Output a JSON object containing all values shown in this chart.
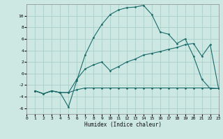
{
  "xlabel": "Humidex (Indice chaleur)",
  "background_color": "#cde8e2",
  "grid_color": "#aad0c8",
  "line_color": "#1a6b6b",
  "line1_x": [
    1,
    2,
    3,
    4,
    5,
    6,
    7,
    8,
    9,
    10,
    11,
    12,
    13,
    14,
    15,
    16,
    17,
    18,
    19,
    20,
    21,
    22,
    23
  ],
  "line1_y": [
    -3.0,
    -3.5,
    -3.0,
    -3.3,
    -5.8,
    -1.2,
    3.2,
    6.2,
    8.5,
    10.2,
    11.0,
    11.4,
    11.5,
    11.8,
    10.2,
    7.2,
    6.8,
    5.2,
    6.0,
    3.0,
    -1.0,
    -2.6,
    -2.6
  ],
  "line2_x": [
    1,
    2,
    3,
    4,
    5,
    6,
    7,
    8,
    9,
    10,
    11,
    12,
    13,
    14,
    15,
    16,
    17,
    18,
    19,
    20,
    21,
    22,
    23
  ],
  "line2_y": [
    -3.0,
    -3.5,
    -3.0,
    -3.3,
    -3.3,
    -2.8,
    -2.5,
    -2.5,
    -2.5,
    -2.5,
    -2.5,
    -2.5,
    -2.5,
    -2.5,
    -2.5,
    -2.5,
    -2.5,
    -2.5,
    -2.5,
    -2.5,
    -2.5,
    -2.5,
    -2.6
  ],
  "line3_x": [
    1,
    2,
    3,
    4,
    5,
    6,
    7,
    8,
    9,
    10,
    11,
    12,
    13,
    14,
    15,
    16,
    17,
    18,
    19,
    20,
    21,
    22,
    23
  ],
  "line3_y": [
    -3.0,
    -3.5,
    -3.0,
    -3.3,
    -3.3,
    -1.0,
    0.8,
    1.5,
    2.0,
    0.5,
    1.2,
    2.0,
    2.5,
    3.2,
    3.5,
    3.8,
    4.2,
    4.5,
    5.0,
    5.2,
    3.0,
    5.0,
    -2.6
  ],
  "ylim": [
    -7,
    12
  ],
  "xlim": [
    0,
    23
  ],
  "yticks": [
    -6,
    -4,
    -2,
    0,
    2,
    4,
    6,
    8,
    10
  ],
  "xticks": [
    0,
    1,
    2,
    3,
    4,
    5,
    6,
    7,
    8,
    9,
    10,
    11,
    12,
    13,
    14,
    15,
    16,
    17,
    18,
    19,
    20,
    21,
    22,
    23
  ]
}
